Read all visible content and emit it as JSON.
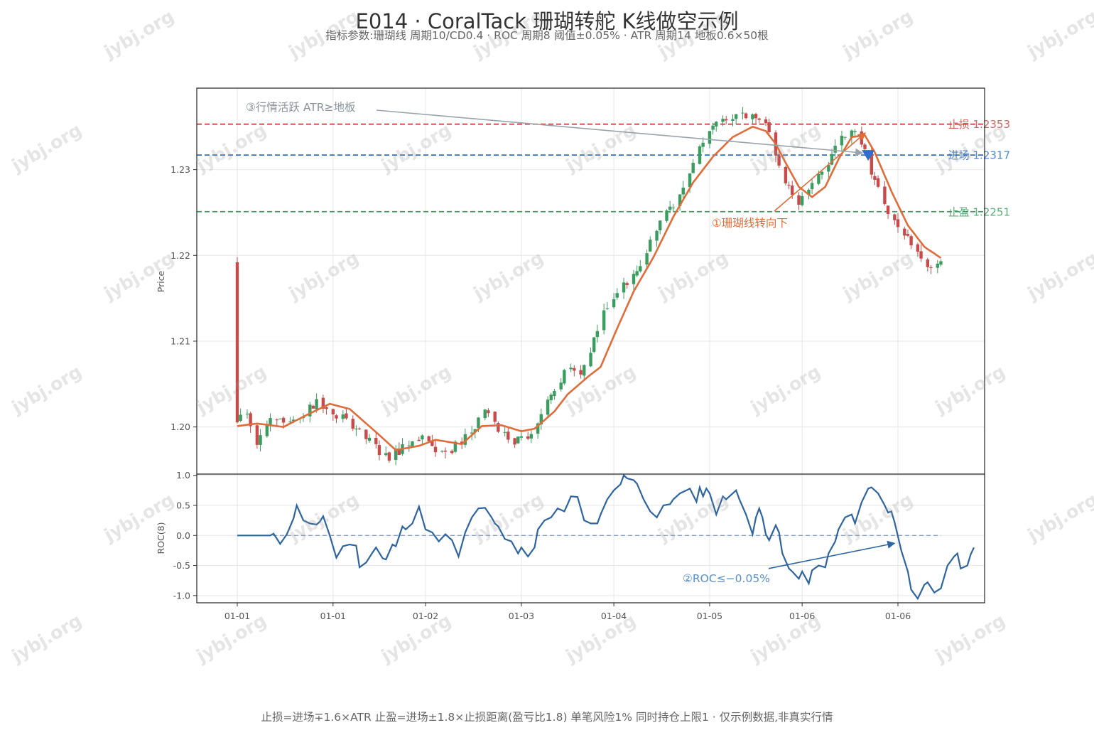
{
  "header": {
    "title": "E014 · CoralTack 珊瑚转舵 K线做空示例",
    "subtitle": "指标参数:珊瑚线 周期10/CD0.4  ·  ROC 周期8 阈值±0.05%  ·  ATR 周期14 地板0.6×50根"
  },
  "footer": {
    "note": "止损=进场∓1.6×ATR  止盈=进场±1.8×止损距离(盈亏比1.8)  单笔风险1%  同时持仓上限1  · 仅示例数据,非真实行情"
  },
  "watermark": {
    "text": "jybj.org"
  },
  "colors": {
    "up": "#3a9d5f",
    "down": "#c94a4a",
    "coral": "#e06c3a",
    "roc": "#2e64a0",
    "stop": "#d04545",
    "entry": "#2f72c4",
    "target": "#3a9d5f",
    "marker": "#2a6fd0"
  },
  "chart_data": [
    {
      "type": "candlestick",
      "ylabel": "Price",
      "ylim": [
        1.1945,
        1.2395
      ],
      "yticks": [
        1.2,
        1.21,
        1.22,
        1.23
      ],
      "ytick_labels": [
        "1.20",
        "1.21",
        "1.22",
        "1.23"
      ],
      "grid": true,
      "bar_count": 150,
      "close_path": [
        [
          0,
          1.2005
        ],
        [
          3,
          1.2015
        ],
        [
          6,
          1.1985
        ],
        [
          10,
          1.201
        ],
        [
          15,
          1.2
        ],
        [
          20,
          1.2015
        ],
        [
          25,
          1.203
        ],
        [
          30,
          1.2015
        ],
        [
          34,
          1.2005
        ],
        [
          38,
          1.1995
        ],
        [
          42,
          1.1975
        ],
        [
          46,
          1.1965
        ],
        [
          50,
          1.1975
        ],
        [
          54,
          1.1985
        ],
        [
          57,
          1.1995
        ],
        [
          60,
          1.1965
        ],
        [
          65,
          1.1975
        ],
        [
          70,
          1.199
        ],
        [
          75,
          1.202
        ],
        [
          79,
          1.1995
        ],
        [
          83,
          1.1985
        ],
        [
          86,
          1.1985
        ],
        [
          88,
          1.199
        ],
        [
          92,
          1.2015
        ],
        [
          96,
          1.204
        ],
        [
          100,
          1.2075
        ],
        [
          104,
          1.2065
        ],
        [
          108,
          1.21
        ],
        [
          112,
          1.214
        ],
        [
          116,
          1.2165
        ],
        [
          120,
          1.2175
        ],
        [
          124,
          1.2205
        ],
        [
          128,
          1.224
        ],
        [
          133,
          1.2265
        ],
        [
          137,
          1.2295
        ],
        [
          141,
          1.2335
        ],
        [
          145,
          1.2355
        ],
        [
          149,
          1.236
        ],
        [
          153,
          1.2365
        ],
        [
          157,
          1.236
        ],
        [
          160,
          1.2355
        ],
        [
          163,
          1.2315
        ],
        [
          166,
          1.2285
        ],
        [
          170,
          1.2265
        ],
        [
          173,
          1.2275
        ],
        [
          177,
          1.2295
        ],
        [
          180,
          1.2315
        ],
        [
          183,
          1.234
        ],
        [
          186,
          1.235
        ],
        [
          189,
          1.233
        ],
        [
          191,
          1.231
        ],
        [
          193,
          1.229
        ],
        [
          196,
          1.2255
        ],
        [
          200,
          1.223
        ],
        [
          204,
          1.2215
        ],
        [
          208,
          1.2195
        ],
        [
          210,
          1.2185
        ],
        [
          213,
          1.219
        ]
      ],
      "horizontal_lines": [
        {
          "name": "stop",
          "label": "止损 1.2353",
          "value": 1.2353
        },
        {
          "name": "entry",
          "label": "进场 1.2317",
          "value": 1.2317
        },
        {
          "name": "target",
          "label": "止盈 1.2251",
          "value": 1.2251
        }
      ],
      "coral_line": [
        [
          0,
          1.2001
        ],
        [
          6,
          1.2004
        ],
        [
          14,
          1.2
        ],
        [
          20,
          1.2012
        ],
        [
          28,
          1.2027
        ],
        [
          34,
          1.2021
        ],
        [
          42,
          1.1994
        ],
        [
          48,
          1.1973
        ],
        [
          55,
          1.1978
        ],
        [
          60,
          1.1985
        ],
        [
          68,
          1.198
        ],
        [
          74,
          1.2001
        ],
        [
          80,
          1.2002
        ],
        [
          86,
          1.1995
        ],
        [
          90,
          1.1998
        ],
        [
          96,
          1.2018
        ],
        [
          100,
          1.2038
        ],
        [
          106,
          1.2058
        ],
        [
          110,
          1.207
        ],
        [
          115,
          1.2115
        ],
        [
          120,
          1.2158
        ],
        [
          126,
          1.2198
        ],
        [
          132,
          1.2245
        ],
        [
          138,
          1.2285
        ],
        [
          144,
          1.2315
        ],
        [
          150,
          1.2338
        ],
        [
          156,
          1.235
        ],
        [
          160,
          1.2345
        ],
        [
          163,
          1.233
        ],
        [
          166,
          1.2308
        ],
        [
          170,
          1.228
        ],
        [
          174,
          1.2268
        ],
        [
          178,
          1.228
        ],
        [
          182,
          1.2312
        ],
        [
          186,
          1.2338
        ],
        [
          190,
          1.234
        ],
        [
          193,
          1.232
        ],
        [
          198,
          1.2275
        ],
        [
          203,
          1.2235
        ],
        [
          208,
          1.221
        ],
        [
          213,
          1.2197
        ]
      ],
      "entry_marker": {
        "bar": 191,
        "value": 1.2317
      },
      "annotations": [
        {
          "name": "coral-turn",
          "text": "①珊瑚线转向下"
        },
        {
          "name": "atr-active",
          "text": "③行情活跃 ATR≥地板"
        }
      ]
    },
    {
      "type": "line",
      "ylabel": "ROC(8)",
      "ylim": [
        -1.12,
        1.02
      ],
      "yticks": [
        -1.0,
        -0.5,
        0.0,
        0.5,
        1.0
      ],
      "ytick_labels": [
        "-1.0",
        "-0.5",
        "0.0",
        "0.5",
        "1.0"
      ],
      "xtick_labels": [
        "01-01",
        "01-01",
        "01-02",
        "01-03",
        "01-04",
        "01-05",
        "01-06",
        "01-06"
      ],
      "xtick_bars": [
        0,
        29,
        57,
        86,
        114,
        143,
        171,
        200
      ],
      "threshold": 0.0,
      "grid": true,
      "roc": [
        [
          0,
          0.0
        ],
        [
          10,
          0.0
        ],
        [
          11,
          0.03
        ],
        [
          13,
          -0.14
        ],
        [
          15,
          0.02
        ],
        [
          17,
          0.28
        ],
        [
          18,
          0.5
        ],
        [
          20,
          0.25
        ],
        [
          22,
          0.2
        ],
        [
          24,
          0.18
        ],
        [
          25,
          0.23
        ],
        [
          26,
          0.32
        ],
        [
          28,
          0.0
        ],
        [
          30,
          -0.37
        ],
        [
          32,
          -0.18
        ],
        [
          34,
          -0.15
        ],
        [
          36,
          -0.17
        ],
        [
          37,
          -0.53
        ],
        [
          39,
          -0.45
        ],
        [
          41,
          -0.28
        ],
        [
          42,
          -0.2
        ],
        [
          44,
          -0.38
        ],
        [
          45,
          -0.4
        ],
        [
          47,
          -0.15
        ],
        [
          48,
          -0.18
        ],
        [
          50,
          0.15
        ],
        [
          51,
          0.1
        ],
        [
          53,
          0.2
        ],
        [
          55,
          0.48
        ],
        [
          57,
          0.1
        ],
        [
          59,
          0.05
        ],
        [
          61,
          -0.1
        ],
        [
          63,
          0.02
        ],
        [
          65,
          -0.08
        ],
        [
          67,
          -0.35
        ],
        [
          69,
          0.05
        ],
        [
          71,
          0.3
        ],
        [
          73,
          0.45
        ],
        [
          75,
          0.46
        ],
        [
          77,
          0.3
        ],
        [
          78,
          0.2
        ],
        [
          79,
          0.15
        ],
        [
          81,
          -0.06
        ],
        [
          83,
          -0.1
        ],
        [
          85,
          -0.3
        ],
        [
          86,
          -0.2
        ],
        [
          88,
          -0.35
        ],
        [
          90,
          -0.2
        ],
        [
          91,
          0.1
        ],
        [
          93,
          0.25
        ],
        [
          95,
          0.3
        ],
        [
          97,
          0.45
        ],
        [
          99,
          0.4
        ],
        [
          100,
          0.52
        ],
        [
          101,
          0.65
        ],
        [
          103,
          0.64
        ],
        [
          105,
          0.25
        ],
        [
          107,
          0.2
        ],
        [
          109,
          0.2
        ],
        [
          110,
          0.35
        ],
        [
          112,
          0.6
        ],
        [
          114,
          0.75
        ],
        [
          116,
          0.85
        ],
        [
          117,
          1.0
        ],
        [
          118,
          0.95
        ],
        [
          120,
          0.92
        ],
        [
          121,
          0.86
        ],
        [
          123,
          0.6
        ],
        [
          125,
          0.4
        ],
        [
          127,
          0.3
        ],
        [
          129,
          0.5
        ],
        [
          131,
          0.52
        ],
        [
          132,
          0.6
        ],
        [
          134,
          0.7
        ],
        [
          136,
          0.75
        ],
        [
          137,
          0.78
        ],
        [
          139,
          0.56
        ],
        [
          140,
          0.8
        ],
        [
          141,
          0.65
        ],
        [
          142,
          0.78
        ],
        [
          143,
          0.7
        ],
        [
          145,
          0.35
        ],
        [
          147,
          0.65
        ],
        [
          148,
          0.6
        ],
        [
          150,
          0.7
        ],
        [
          151,
          0.75
        ],
        [
          152,
          0.6
        ],
        [
          154,
          0.35
        ],
        [
          156,
          0.02
        ],
        [
          157,
          0.3
        ],
        [
          158,
          0.45
        ],
        [
          159,
          0.3
        ],
        [
          160,
          0.02
        ],
        [
          161,
          -0.08
        ],
        [
          163,
          0.17
        ],
        [
          164,
          0.05
        ],
        [
          165,
          -0.3
        ],
        [
          167,
          -0.55
        ],
        [
          168,
          -0.6
        ],
        [
          170,
          -0.72
        ],
        [
          171,
          -0.6
        ],
        [
          173,
          -0.8
        ],
        [
          174,
          -0.58
        ],
        [
          176,
          -0.5
        ],
        [
          178,
          -0.53
        ],
        [
          179,
          -0.3
        ],
        [
          181,
          -0.1
        ],
        [
          182,
          0.1
        ],
        [
          184,
          0.3
        ],
        [
          186,
          0.35
        ],
        [
          187,
          0.2
        ],
        [
          189,
          0.55
        ],
        [
          191,
          0.78
        ],
        [
          192,
          0.8
        ],
        [
          194,
          0.7
        ],
        [
          196,
          0.5
        ],
        [
          197,
          0.38
        ],
        [
          198,
          0.4
        ],
        [
          199,
          0.22
        ],
        [
          201,
          -0.25
        ],
        [
          203,
          -0.6
        ],
        [
          204,
          -0.9
        ],
        [
          206,
          -1.05
        ],
        [
          208,
          -0.82
        ],
        [
          209,
          -0.78
        ],
        [
          211,
          -0.95
        ],
        [
          213,
          -0.88
        ],
        [
          215,
          -0.5
        ],
        [
          217,
          -0.35
        ],
        [
          218,
          -0.3
        ],
        [
          219,
          -0.55
        ],
        [
          221,
          -0.5
        ],
        [
          222,
          -0.32
        ],
        [
          223,
          -0.2
        ]
      ],
      "annotations": [
        {
          "name": "roc-cross",
          "text": "②ROC≤−0.05%"
        }
      ]
    }
  ]
}
